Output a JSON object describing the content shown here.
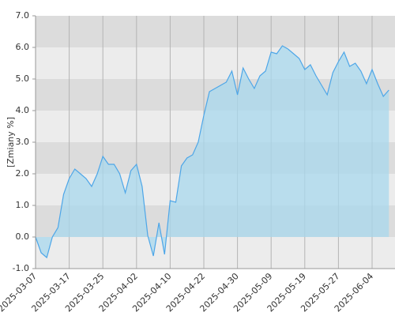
{
  "chart_data": {
    "type": "area",
    "y_label": "[Zmiany %]",
    "categories": [
      "2025-03-07",
      null,
      null,
      null,
      null,
      null,
      "2025-03-17",
      null,
      null,
      null,
      null,
      null,
      "2025-03-25",
      null,
      null,
      null,
      null,
      null,
      "2025-04-02",
      null,
      null,
      null,
      null,
      null,
      "2025-04-10",
      null,
      null,
      null,
      null,
      null,
      "2025-04-22",
      null,
      null,
      null,
      null,
      null,
      "2025-04-30",
      null,
      null,
      null,
      null,
      null,
      "2025-05-09",
      null,
      null,
      null,
      null,
      null,
      "2025-05-19",
      null,
      null,
      null,
      null,
      null,
      "2025-05-27",
      null,
      null,
      null,
      null,
      null,
      "2025-06-04",
      null,
      null,
      null
    ],
    "values": [
      0.0,
      -0.5,
      -0.65,
      0.0,
      0.3,
      1.35,
      1.85,
      2.15,
      2.0,
      1.85,
      1.6,
      2.0,
      2.55,
      2.3,
      2.3,
      2.0,
      1.4,
      2.1,
      2.3,
      1.6,
      0.05,
      -0.6,
      0.45,
      -0.55,
      1.15,
      1.1,
      2.25,
      2.5,
      2.6,
      3.0,
      3.85,
      4.6,
      4.7,
      4.8,
      4.9,
      5.25,
      4.5,
      5.35,
      5.0,
      4.7,
      5.1,
      5.25,
      5.85,
      5.8,
      6.05,
      5.95,
      5.8,
      5.65,
      5.3,
      5.45,
      5.1,
      4.8,
      4.5,
      5.2,
      5.55,
      5.85,
      5.4,
      5.5,
      5.25,
      4.85,
      5.3,
      4.85,
      4.45,
      4.65
    ],
    "color": "#4da6e8",
    "fill_color": "#a8d8ee",
    "ylim": [
      -1,
      7
    ],
    "yticks": [
      {
        "value": -1,
        "label": "-1.0"
      },
      {
        "value": 0,
        "label": "0.0"
      },
      {
        "value": 1,
        "label": "1.0"
      },
      {
        "value": 2,
        "label": "2.0"
      },
      {
        "value": 3,
        "label": "3.0"
      },
      {
        "value": 4,
        "label": "4.0"
      },
      {
        "value": 5,
        "label": "5.0"
      },
      {
        "value": 6,
        "label": "6.0"
      },
      {
        "value": 7,
        "label": "7.0"
      }
    ],
    "band_colors": [
      "#ececec",
      "#dcdcdc"
    ],
    "grid": true
  }
}
